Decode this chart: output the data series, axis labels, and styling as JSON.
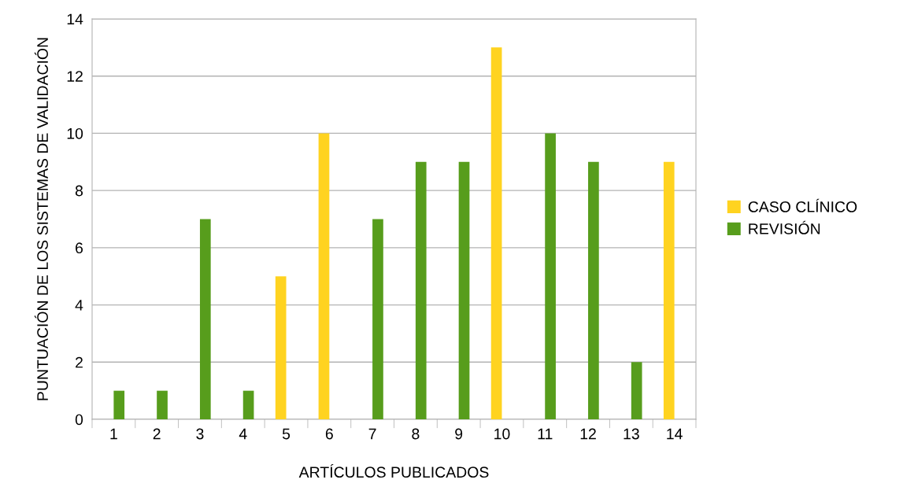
{
  "chart_data": {
    "type": "bar",
    "xlabel": "ARTÍCULOS PUBLICADOS",
    "ylabel": "PUNTUACIÓN DE LOS SISTEMAS DE VALIDACIÓN",
    "categories": [
      "1",
      "2",
      "3",
      "4",
      "5",
      "6",
      "7",
      "8",
      "9",
      "10",
      "11",
      "12",
      "13",
      "14"
    ],
    "series": [
      {
        "name": "CASO CLÍNICO",
        "color": "#ffd320",
        "values": [
          null,
          null,
          null,
          null,
          5,
          10,
          null,
          null,
          null,
          13,
          null,
          null,
          null,
          9
        ]
      },
      {
        "name": "REVISIÓN",
        "color": "#579d1c",
        "values": [
          1,
          1,
          7,
          1,
          null,
          null,
          7,
          9,
          9,
          null,
          10,
          9,
          2,
          null
        ]
      }
    ],
    "ylim": [
      0,
      14
    ],
    "yticks": [
      0,
      2,
      4,
      6,
      8,
      10,
      12,
      14
    ],
    "grid": "y",
    "legend": "right"
  }
}
